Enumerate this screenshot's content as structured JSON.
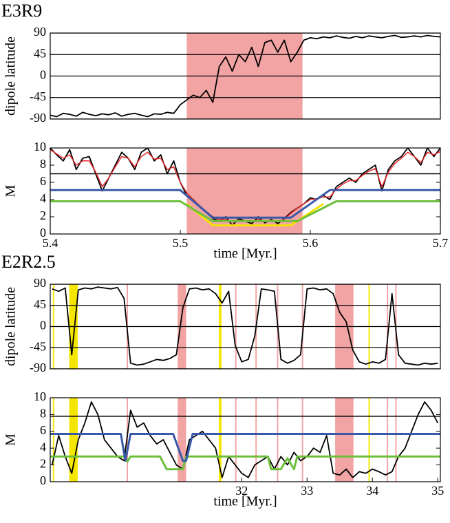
{
  "chart_data": [
    {
      "type": "line",
      "title": "E3R9",
      "ylabel": "dipole latitude",
      "xlim": [
        5.4,
        5.7
      ],
      "ylim": [
        -90,
        90
      ],
      "yticks": [
        90,
        45,
        0,
        -45,
        -90
      ],
      "grid": true,
      "shaded": [
        {
          "x": [
            5.505,
            5.594
          ],
          "color": "#f2a3a3"
        }
      ],
      "x": [
        5.4,
        5.405,
        5.41,
        5.415,
        5.42,
        5.425,
        5.43,
        5.435,
        5.44,
        5.445,
        5.45,
        5.455,
        5.46,
        5.465,
        5.47,
        5.475,
        5.48,
        5.485,
        5.49,
        5.495,
        5.5,
        5.505,
        5.51,
        5.515,
        5.52,
        5.525,
        5.53,
        5.535,
        5.54,
        5.545,
        5.55,
        5.555,
        5.56,
        5.565,
        5.57,
        5.575,
        5.58,
        5.585,
        5.59,
        5.595,
        5.6,
        5.605,
        5.61,
        5.615,
        5.62,
        5.625,
        5.63,
        5.635,
        5.64,
        5.645,
        5.65,
        5.655,
        5.66,
        5.665,
        5.67,
        5.675,
        5.68,
        5.685,
        5.69,
        5.695,
        5.7
      ],
      "series": [
        {
          "color": "#000000",
          "values": [
            -82,
            -85,
            -78,
            -80,
            -84,
            -76,
            -80,
            -83,
            -79,
            -81,
            -77,
            -84,
            -80,
            -78,
            -82,
            -85,
            -79,
            -80,
            -76,
            -78,
            -60,
            -50,
            -40,
            -45,
            -30,
            -55,
            20,
            40,
            10,
            45,
            30,
            60,
            20,
            70,
            75,
            50,
            75,
            30,
            50,
            75,
            80,
            78,
            82,
            80,
            84,
            81,
            79,
            83,
            80,
            84,
            82,
            80,
            83,
            85,
            81,
            82,
            84,
            82,
            85,
            83,
            82
          ]
        }
      ]
    },
    {
      "type": "line",
      "ylabel": "M",
      "xlabel": "time [Myr.]",
      "xlim": [
        5.4,
        5.7
      ],
      "xticks": [
        5.4,
        5.5,
        5.6,
        5.7
      ],
      "ylim": [
        0,
        10
      ],
      "yticks": [
        0,
        2,
        4,
        6,
        8,
        10
      ],
      "hlines": [
        7
      ],
      "shaded": [
        {
          "x": [
            5.505,
            5.594
          ],
          "color": "#f2a3a3"
        }
      ],
      "x": [
        5.4,
        5.405,
        5.41,
        5.415,
        5.42,
        5.425,
        5.43,
        5.435,
        5.44,
        5.445,
        5.45,
        5.455,
        5.46,
        5.465,
        5.47,
        5.475,
        5.48,
        5.485,
        5.49,
        5.495,
        5.5,
        5.505,
        5.51,
        5.515,
        5.52,
        5.525,
        5.53,
        5.535,
        5.54,
        5.545,
        5.55,
        5.555,
        5.56,
        5.565,
        5.57,
        5.575,
        5.58,
        5.585,
        5.59,
        5.595,
        5.6,
        5.605,
        5.61,
        5.615,
        5.62,
        5.625,
        5.63,
        5.635,
        5.64,
        5.645,
        5.65,
        5.655,
        5.66,
        5.665,
        5.67,
        5.675,
        5.68,
        5.685,
        5.69,
        5.695,
        5.7
      ],
      "series": [
        {
          "color": "#000000",
          "values": [
            10,
            9.2,
            8.5,
            9.8,
            7.5,
            8.8,
            9,
            7,
            5,
            6.5,
            8,
            9.5,
            8.8,
            7.5,
            9.5,
            10,
            8.5,
            9.2,
            7,
            8.5,
            6,
            4.5,
            4,
            3.2,
            2.5,
            1.8,
            1.5,
            2,
            1,
            1.8,
            1.5,
            1.2,
            2,
            1.3,
            1.7,
            1.2,
            1.8,
            2.5,
            3,
            3.5,
            4.2,
            4,
            4.5,
            4,
            5.5,
            6,
            6.5,
            6,
            7,
            7.5,
            8,
            5,
            7.5,
            8.5,
            9,
            10,
            9,
            8,
            10,
            9,
            10
          ]
        },
        {
          "color": "#e8262a",
          "values": [
            9.8,
            9.3,
            8.8,
            9.2,
            8,
            8.5,
            8.5,
            7.2,
            5.5,
            6.5,
            7.8,
            9,
            8.8,
            7.8,
            9,
            9.5,
            8.7,
            8.8,
            7.5,
            7.8,
            6,
            4.8,
            4,
            3.3,
            2.6,
            2,
            1.7,
            1.7,
            1.4,
            1.6,
            1.5,
            1.4,
            1.7,
            1.5,
            1.6,
            1.4,
            1.7,
            2.4,
            3,
            3.5,
            4,
            4.1,
            4.3,
            4.3,
            5.2,
            5.8,
            6.2,
            6.2,
            6.8,
            7.3,
            7.6,
            5.5,
            7.2,
            8.2,
            8.8,
            9.5,
            9,
            8.3,
            9.5,
            9.2,
            9.6
          ]
        },
        {
          "color": "#f5e100",
          "x": [
            5.505,
            5.525,
            5.585,
            5.61
          ],
          "values": [
            3.5,
            1,
            1,
            3.5
          ]
        },
        {
          "color": "#6cbf3a",
          "x": [
            5.4,
            5.5,
            5.525,
            5.59,
            5.62,
            5.7
          ],
          "values": [
            3.8,
            3.8,
            1.5,
            1.5,
            3.8,
            3.8
          ]
        },
        {
          "color": "#3a58a8",
          "x": [
            5.4,
            5.5,
            5.525,
            5.585,
            5.615,
            5.7
          ],
          "values": [
            5.1,
            5.1,
            1.9,
            1.9,
            5.1,
            5.1
          ]
        }
      ]
    },
    {
      "type": "line",
      "title": "E2R2.5",
      "ylabel": "dipole latitude",
      "xlim": [
        29.07,
        35.04
      ],
      "ylim": [
        -90,
        90
      ],
      "yticks": [
        90,
        45,
        0,
        -45,
        -90
      ],
      "grid": true,
      "shaded": [
        {
          "x": [
            29.11,
            29.13
          ],
          "color": "#f5e600"
        },
        {
          "x": [
            29.36,
            29.49
          ],
          "color": "#f5e600"
        },
        {
          "x": [
            30.24,
            30.26
          ],
          "color": "#f2a3a3"
        },
        {
          "x": [
            31.02,
            31.15
          ],
          "color": "#f2a3a3"
        },
        {
          "x": [
            31.65,
            31.69
          ],
          "color": "#f5e600"
        },
        {
          "x": [
            31.9,
            31.92
          ],
          "color": "#f2a3a3"
        },
        {
          "x": [
            32.21,
            32.23
          ],
          "color": "#f2a3a3"
        },
        {
          "x": [
            32.54,
            32.56
          ],
          "color": "#f2a3a3"
        },
        {
          "x": [
            32.92,
            32.94
          ],
          "color": "#f2a3a3"
        },
        {
          "x": [
            33.43,
            33.71
          ],
          "color": "#f2a3a3"
        },
        {
          "x": [
            33.94,
            33.96
          ],
          "color": "#f5e600"
        },
        {
          "x": [
            34.22,
            34.24
          ],
          "color": "#f2a3a3"
        },
        {
          "x": [
            34.35,
            34.37
          ],
          "color": "#f2a3a3"
        }
      ],
      "x": [
        29.1,
        29.2,
        29.3,
        29.4,
        29.5,
        29.6,
        29.7,
        29.8,
        29.9,
        30.0,
        30.1,
        30.2,
        30.3,
        30.4,
        30.5,
        30.6,
        30.7,
        30.8,
        30.9,
        31.0,
        31.1,
        31.2,
        31.3,
        31.4,
        31.5,
        31.6,
        31.7,
        31.8,
        31.9,
        32.0,
        32.1,
        32.2,
        32.3,
        32.4,
        32.5,
        32.6,
        32.7,
        32.8,
        32.9,
        33.0,
        33.1,
        33.2,
        33.3,
        33.4,
        33.5,
        33.6,
        33.7,
        33.8,
        33.9,
        34.0,
        34.1,
        34.2,
        34.3,
        34.4,
        34.5,
        34.6,
        34.7,
        34.8,
        34.9,
        35.0
      ],
      "series": [
        {
          "color": "#000000",
          "values": [
            80,
            75,
            82,
            -60,
            78,
            82,
            80,
            84,
            82,
            80,
            83,
            60,
            -78,
            -82,
            -80,
            -75,
            -70,
            -72,
            -68,
            -60,
            40,
            80,
            82,
            78,
            80,
            70,
            50,
            75,
            -40,
            -75,
            -70,
            -20,
            80,
            78,
            75,
            -70,
            -78,
            -72,
            -60,
            80,
            82,
            78,
            80,
            70,
            30,
            10,
            -50,
            -75,
            -80,
            -75,
            -78,
            -70,
            70,
            -60,
            -78,
            -80,
            -82,
            -78,
            -80,
            -78
          ]
        }
      ]
    },
    {
      "type": "line",
      "ylabel": "M",
      "xlabel": "time [Myr.]",
      "xlim": [
        29.07,
        35.04
      ],
      "xticks": [
        32,
        33,
        34,
        35
      ],
      "ylim": [
        0,
        10
      ],
      "yticks": [
        0,
        2,
        4,
        6,
        8,
        10
      ],
      "hlines": [
        7.8
      ],
      "shaded": [
        {
          "x": [
            29.11,
            29.13
          ],
          "color": "#f5e600"
        },
        {
          "x": [
            29.36,
            29.49
          ],
          "color": "#f5e600"
        },
        {
          "x": [
            30.24,
            30.26
          ],
          "color": "#f2a3a3"
        },
        {
          "x": [
            31.02,
            31.15
          ],
          "color": "#f2a3a3"
        },
        {
          "x": [
            31.65,
            31.69
          ],
          "color": "#f5e600"
        },
        {
          "x": [
            31.9,
            31.92
          ],
          "color": "#f2a3a3"
        },
        {
          "x": [
            32.21,
            32.23
          ],
          "color": "#f2a3a3"
        },
        {
          "x": [
            32.54,
            32.56
          ],
          "color": "#f2a3a3"
        },
        {
          "x": [
            32.92,
            32.94
          ],
          "color": "#f2a3a3"
        },
        {
          "x": [
            33.43,
            33.71
          ],
          "color": "#f2a3a3"
        },
        {
          "x": [
            33.94,
            33.96
          ],
          "color": "#f5e600"
        },
        {
          "x": [
            34.22,
            34.24
          ],
          "color": "#f2a3a3"
        },
        {
          "x": [
            34.35,
            34.37
          ],
          "color": "#f2a3a3"
        }
      ],
      "x": [
        29.1,
        29.2,
        29.3,
        29.4,
        29.5,
        29.6,
        29.7,
        29.8,
        29.9,
        30.0,
        30.1,
        30.2,
        30.3,
        30.4,
        30.5,
        30.6,
        30.7,
        30.8,
        30.9,
        31.0,
        31.1,
        31.2,
        31.3,
        31.4,
        31.5,
        31.6,
        31.7,
        31.8,
        31.9,
        32.0,
        32.1,
        32.2,
        32.3,
        32.4,
        32.5,
        32.6,
        32.7,
        32.8,
        32.9,
        33.0,
        33.1,
        33.2,
        33.3,
        33.4,
        33.5,
        33.6,
        33.7,
        33.8,
        33.9,
        34.0,
        34.1,
        34.2,
        34.3,
        34.4,
        34.5,
        34.6,
        34.7,
        34.8,
        34.9,
        35.0
      ],
      "series": [
        {
          "color": "#000000",
          "values": [
            2,
            5.5,
            3,
            1,
            5,
            7,
            9.5,
            8,
            5,
            4,
            3,
            2.5,
            8.5,
            6.5,
            7,
            5.5,
            4.5,
            5,
            3.5,
            2,
            1.5,
            5,
            5.5,
            6,
            5,
            4,
            0.5,
            3,
            2,
            1,
            0.5,
            2,
            2.5,
            3,
            1.5,
            3,
            2,
            3.5,
            2.5,
            3,
            4,
            3.5,
            5.5,
            1,
            0.8,
            1.5,
            0.5,
            1.2,
            1,
            1.5,
            1.2,
            0.8,
            1.2,
            3,
            4,
            6,
            8,
            9.5,
            8.5,
            7
          ]
        },
        {
          "color": "#6cbf3a",
          "x": [
            29.07,
            30.2,
            30.25,
            30.3,
            30.75,
            30.85,
            31.1,
            31.15,
            32.4,
            32.45,
            32.6,
            32.7,
            32.8,
            32.85,
            35.04
          ],
          "values": [
            3,
            3,
            2.4,
            3,
            3,
            1.5,
            1.5,
            3,
            3,
            1.5,
            1.5,
            2.8,
            1.5,
            3,
            3
          ]
        },
        {
          "color": "#3a58a8",
          "x": [
            29.07,
            30.15,
            30.22,
            30.3,
            30.95,
            31.1,
            31.15,
            31.25,
            35.04
          ],
          "values": [
            5.7,
            5.7,
            2.5,
            5.7,
            5.7,
            2.5,
            2.5,
            5.7,
            5.7
          ]
        }
      ]
    }
  ]
}
